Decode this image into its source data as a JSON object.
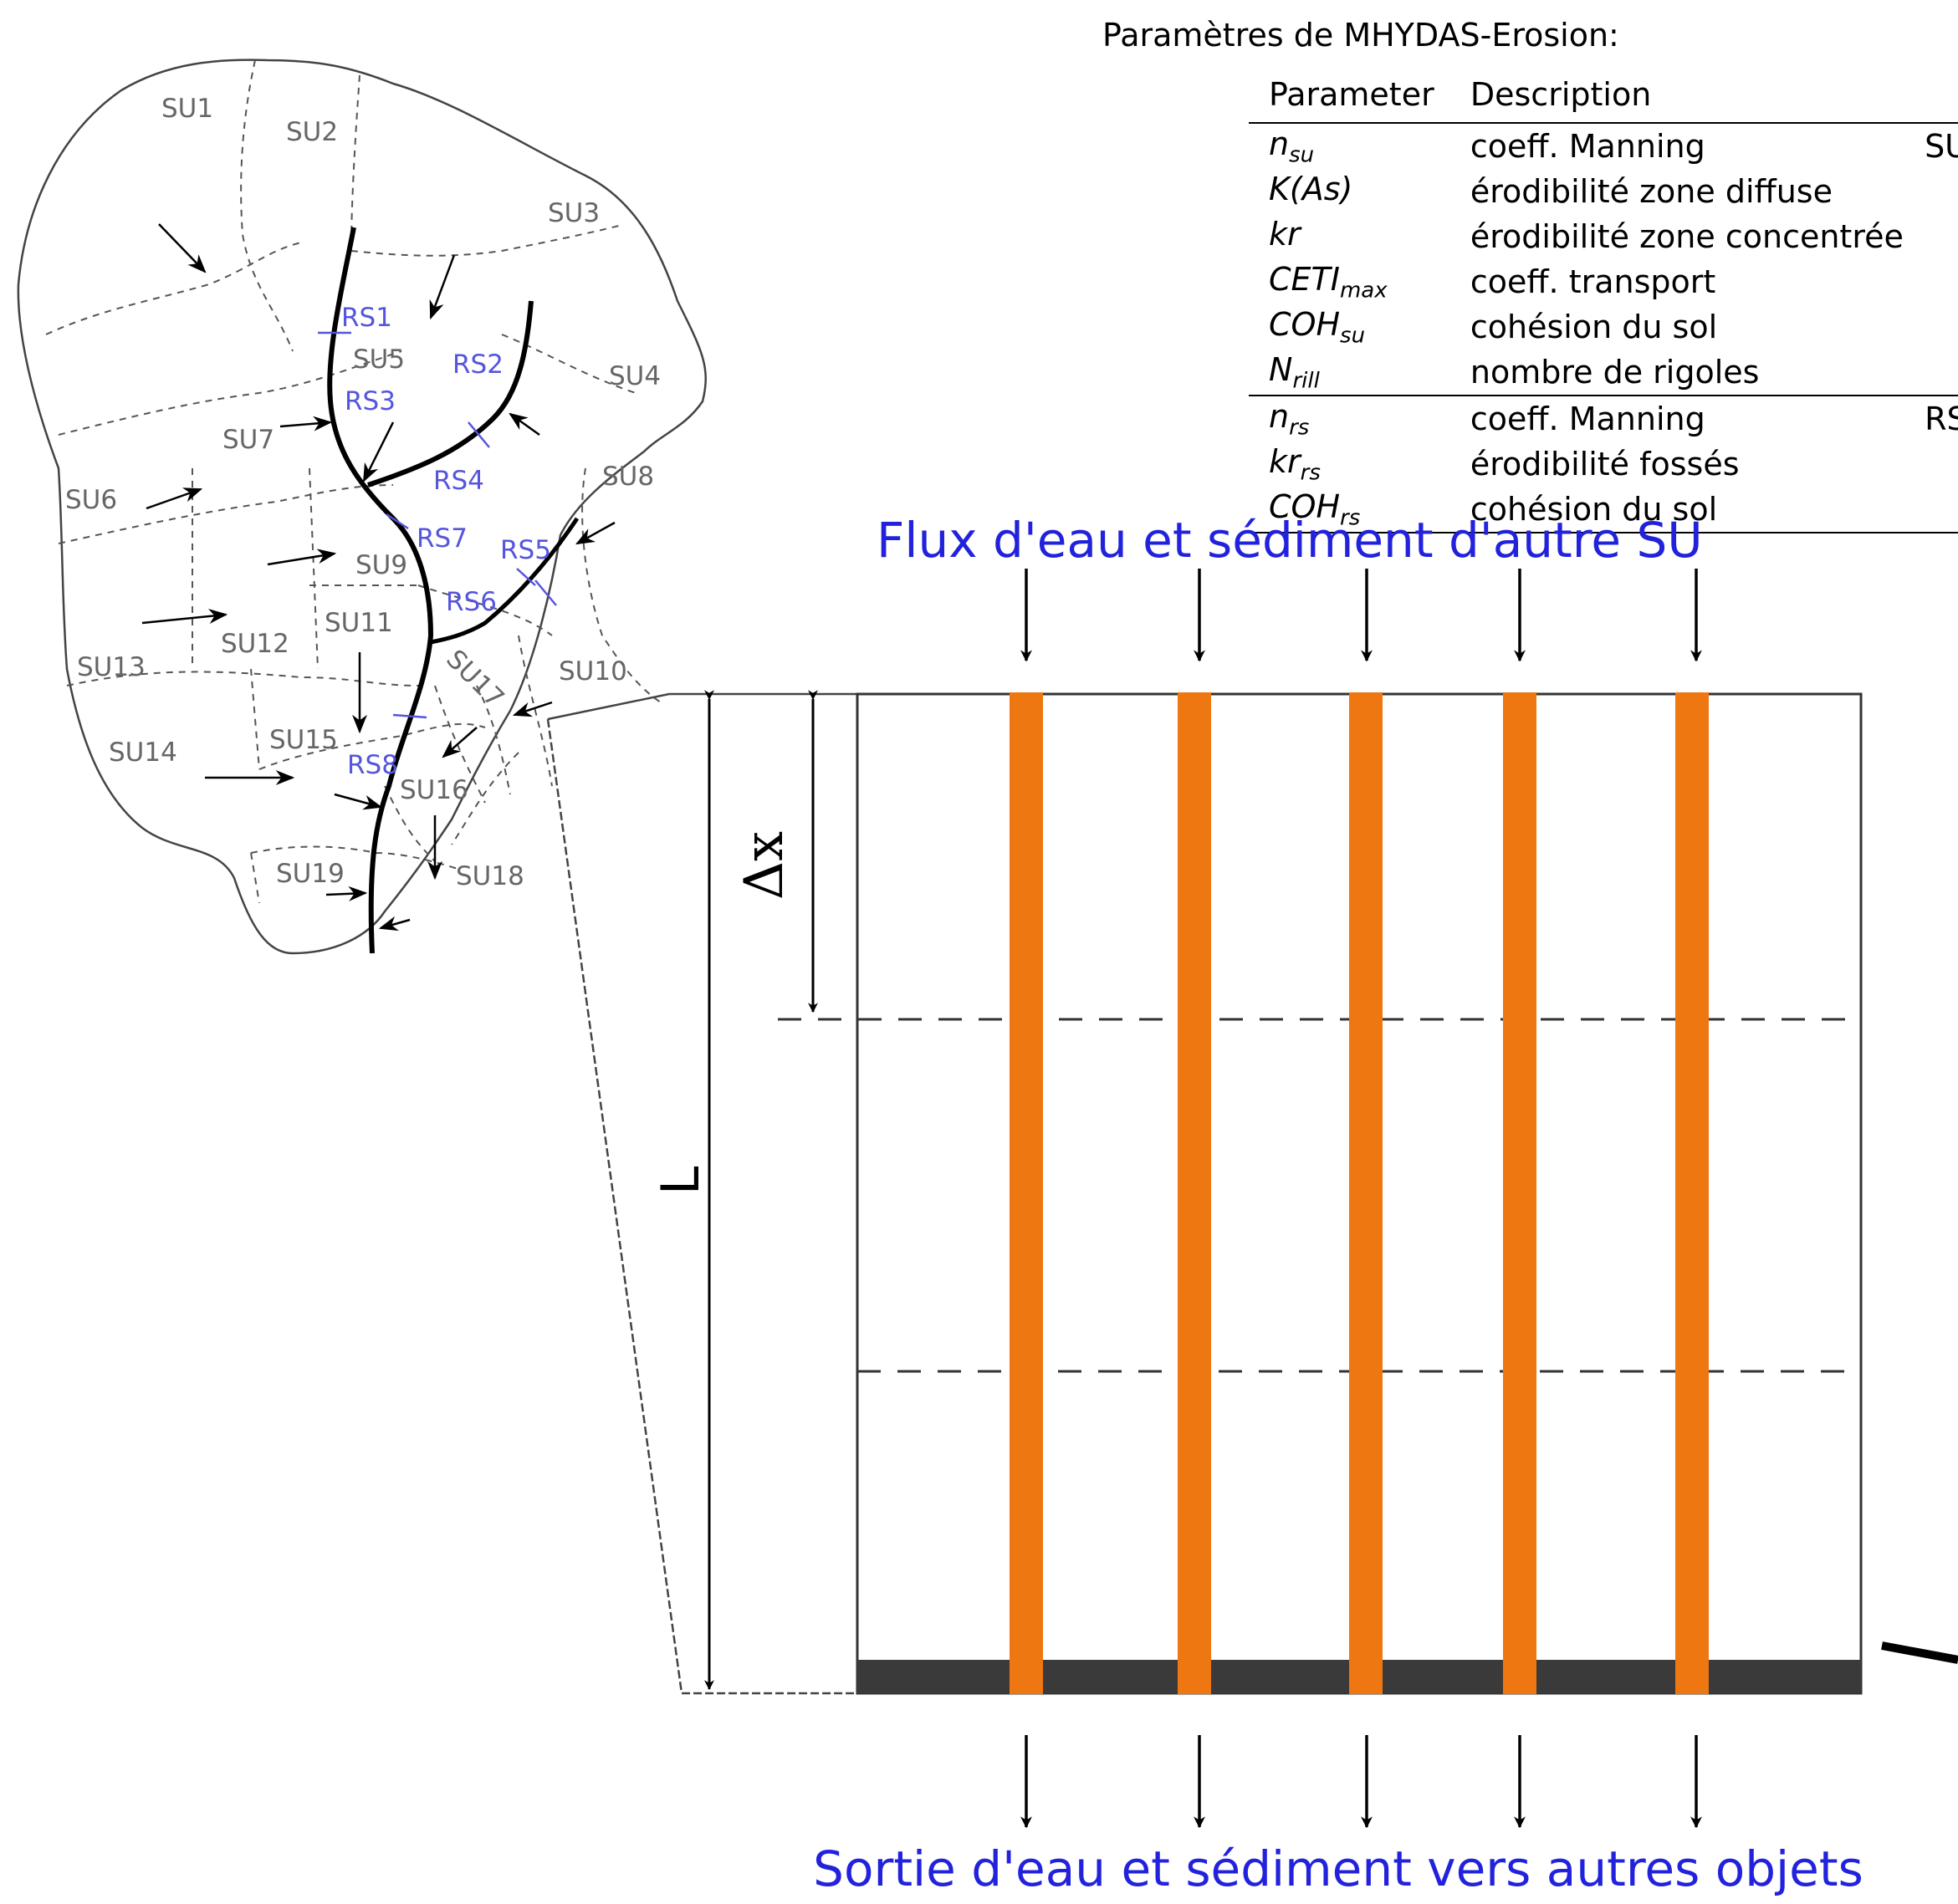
{
  "params_title": "Paramètres de MHYDAS-Erosion:",
  "table": {
    "headers": [
      "Parameter",
      "Description",
      ""
    ],
    "rows": [
      {
        "base": "n",
        "sub": "su",
        "desc": "coeff. Manning",
        "group": "SU"
      },
      {
        "base": "K(As)",
        "sub": "",
        "desc": "érodibilité zone diffuse",
        "group": ""
      },
      {
        "base": "kr",
        "sub": "",
        "desc": "érodibilité zone concentrée",
        "group": ""
      },
      {
        "base": "CETI",
        "sub": "max",
        "desc": "coeff. transport",
        "group": ""
      },
      {
        "base": "COH",
        "sub": "su",
        "desc": "cohésion du sol",
        "group": ""
      },
      {
        "base": "N",
        "sub": "rill",
        "desc": "nombre de rigoles",
        "group": ""
      },
      {
        "base": "n",
        "sub": "rs",
        "desc": "coeff. Manning",
        "group": "RS"
      },
      {
        "base": "kr",
        "sub": "rs",
        "desc": "érodibilité fossés",
        "group": ""
      },
      {
        "base": "COH",
        "sub": "rs",
        "desc": "cohésion du sol",
        "group": ""
      }
    ]
  },
  "map": {
    "su_labels": [
      "SU1",
      "SU2",
      "SU3",
      "SU4",
      "SU5",
      "SU6",
      "SU7",
      "SU8",
      "SU9",
      "SU10",
      "SU11",
      "SU12",
      "SU13",
      "SU14",
      "SU15",
      "SU16",
      "SU17",
      "SU18",
      "SU19"
    ],
    "rs_labels": [
      "RS1",
      "RS2",
      "RS3",
      "RS4",
      "RS5",
      "RS6",
      "RS7",
      "RS8"
    ]
  },
  "diagram": {
    "top_label": "Flux d'eau et sédiment d'autre SU",
    "bottom_label": "Sortie d'eau et sédiment vers autres objets",
    "dx_label": "Δx",
    "length_label": "L"
  },
  "colors": {
    "orange": "#ee7711",
    "blue_text": "#2222dd",
    "rs_blue": "#5555dd",
    "outlet_bar": "#3a3a3a"
  }
}
